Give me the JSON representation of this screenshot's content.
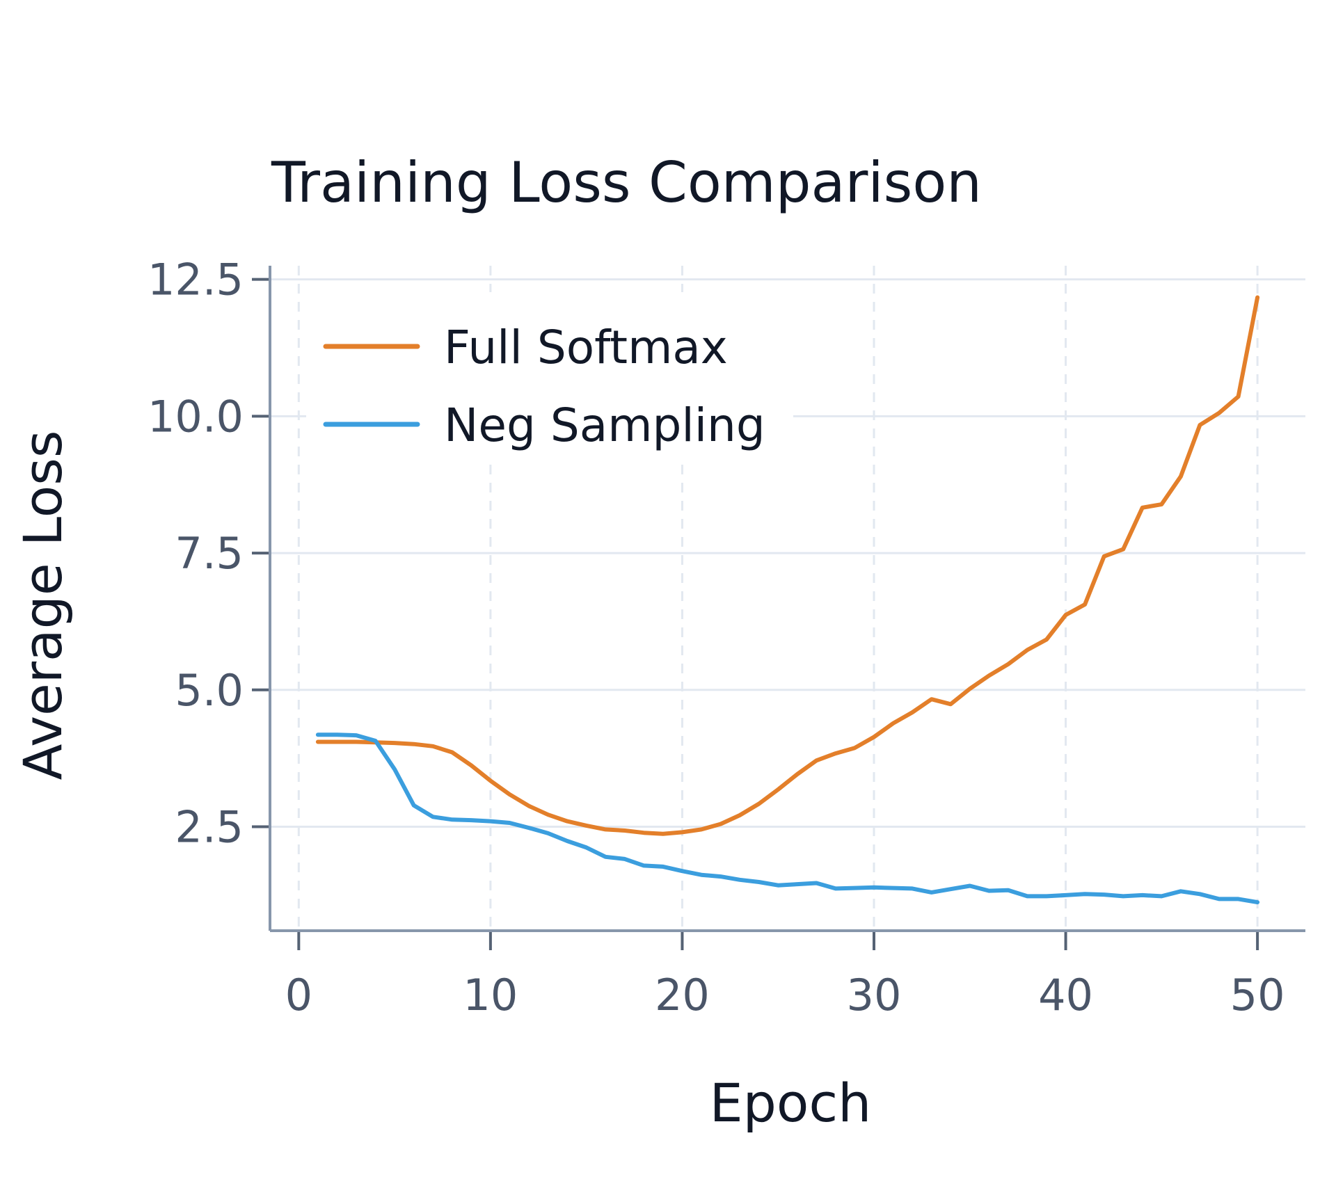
{
  "chart_data": {
    "type": "line",
    "title": "Training Loss Comparison",
    "xlabel": "Epoch",
    "ylabel": "Average Loss",
    "xlim": [
      -1.5,
      52.5
    ],
    "ylim": [
      0.6,
      12.75
    ],
    "x_ticks": [
      0,
      10,
      20,
      30,
      40,
      50
    ],
    "y_ticks": [
      2.5,
      5.0,
      7.5,
      10.0,
      12.5
    ],
    "x_tick_labels": [
      "0",
      "10",
      "20",
      "30",
      "40",
      "50"
    ],
    "y_tick_labels": [
      "2.5",
      "5.0",
      "7.5",
      "10.0",
      "12.5"
    ],
    "grid": true,
    "legend_position": "top-left",
    "x": [
      1,
      2,
      3,
      4,
      5,
      6,
      7,
      8,
      9,
      10,
      11,
      12,
      13,
      14,
      15,
      16,
      17,
      18,
      19,
      20,
      21,
      22,
      23,
      24,
      25,
      26,
      27,
      28,
      29,
      30,
      31,
      32,
      33,
      34,
      35,
      36,
      37,
      38,
      39,
      40,
      41,
      42,
      43,
      44,
      45,
      46,
      47,
      48,
      49,
      50
    ],
    "series": [
      {
        "name": "Full Softmax",
        "color": "#e37f2a",
        "values": [
          4.05,
          4.05,
          4.05,
          4.04,
          4.03,
          4.01,
          3.97,
          3.86,
          3.62,
          3.34,
          3.09,
          2.88,
          2.72,
          2.6,
          2.52,
          2.45,
          2.43,
          2.39,
          2.37,
          2.4,
          2.45,
          2.55,
          2.71,
          2.92,
          3.18,
          3.46,
          3.71,
          3.84,
          3.94,
          4.14,
          4.39,
          4.59,
          4.83,
          4.74,
          5.02,
          5.26,
          5.47,
          5.73,
          5.92,
          6.37,
          6.56,
          7.44,
          7.57,
          8.33,
          8.39,
          8.9,
          9.84,
          10.06,
          10.36,
          12.17
        ]
      },
      {
        "name": "Neg Sampling",
        "color": "#3b9ede",
        "values": [
          4.18,
          4.18,
          4.17,
          4.07,
          3.55,
          2.89,
          2.68,
          2.63,
          2.62,
          2.6,
          2.57,
          2.48,
          2.38,
          2.24,
          2.12,
          1.95,
          1.91,
          1.79,
          1.77,
          1.69,
          1.62,
          1.59,
          1.53,
          1.49,
          1.43,
          1.45,
          1.47,
          1.37,
          1.38,
          1.39,
          1.38,
          1.37,
          1.3,
          1.36,
          1.42,
          1.33,
          1.34,
          1.23,
          1.23,
          1.25,
          1.27,
          1.26,
          1.23,
          1.25,
          1.23,
          1.32,
          1.27,
          1.18,
          1.18,
          1.12
        ]
      }
    ]
  }
}
